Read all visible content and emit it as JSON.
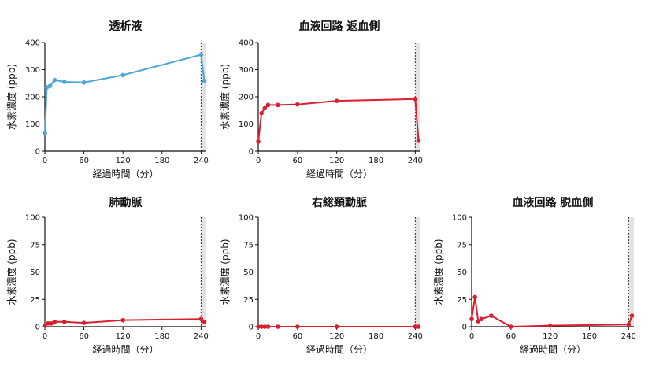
{
  "colors": {
    "blue": "#4aa7d8",
    "red": "#d9202e",
    "shade": "#e3e3e3",
    "axis": "#111111"
  },
  "chart_data": [
    {
      "type": "line",
      "title": "透析液",
      "xlabel": "経過時間（分）",
      "ylabel": "水素濃度 (ppb)",
      "xlim": [
        0,
        248
      ],
      "ylim": [
        0,
        400
      ],
      "xticks": [
        "0",
        "60",
        "120",
        "180",
        "240"
      ],
      "yticks": [
        "0",
        "100",
        "200",
        "300",
        "400"
      ],
      "color": "blue",
      "x": [
        0,
        3,
        8,
        15,
        30,
        60,
        120,
        240,
        245
      ],
      "y": [
        65,
        235,
        240,
        262,
        255,
        253,
        280,
        355,
        258
      ],
      "dashed_line_x": 240,
      "shade_from_x": 240
    },
    {
      "type": "line",
      "title": "血液回路 返血側",
      "xlabel": "経過時間（分）",
      "ylabel": "水素濃度 (ppb)",
      "xlim": [
        0,
        248
      ],
      "ylim": [
        0,
        400
      ],
      "xticks": [
        "0",
        "60",
        "120",
        "180",
        "240"
      ],
      "yticks": [
        "0",
        "100",
        "200",
        "300",
        "400"
      ],
      "color": "red",
      "x": [
        0,
        5,
        10,
        15,
        30,
        60,
        120,
        240,
        245
      ],
      "y": [
        35,
        140,
        158,
        170,
        170,
        172,
        185,
        192,
        38
      ],
      "dashed_line_x": 240,
      "shade_from_x": 240
    },
    {
      "type": "line",
      "title": "肺動脈",
      "xlabel": "経過時間（分）",
      "ylabel": "水素濃度 (ppb)",
      "xlim": [
        0,
        248
      ],
      "ylim": [
        0,
        100
      ],
      "xticks": [
        "0",
        "60",
        "120",
        "180",
        "240"
      ],
      "yticks": [
        "0",
        "25",
        "50",
        "75",
        "100"
      ],
      "color": "red",
      "x": [
        0,
        5,
        10,
        15,
        30,
        60,
        120,
        240,
        245
      ],
      "y": [
        1,
        3,
        3,
        4.5,
        4.5,
        3.5,
        6,
        7,
        4.5
      ],
      "dashed_line_x": 240,
      "shade_from_x": 240
    },
    {
      "type": "line",
      "title": "右総頚動脈",
      "xlabel": "経過時間（分）",
      "ylabel": "水素濃度 (ppb)",
      "xlim": [
        0,
        248
      ],
      "ylim": [
        0,
        100
      ],
      "xticks": [
        "0",
        "60",
        "120",
        "180",
        "240"
      ],
      "yticks": [
        "0",
        "25",
        "50",
        "75",
        "100"
      ],
      "color": "red",
      "x": [
        0,
        5,
        10,
        15,
        30,
        60,
        120,
        240,
        245
      ],
      "y": [
        0,
        0,
        0,
        0,
        0,
        0,
        0,
        0,
        0
      ],
      "dashed_line_x": 240,
      "shade_from_x": 240
    },
    {
      "type": "line",
      "title": "血液回路 脱血側",
      "xlabel": "経過時間（分）",
      "ylabel": "水素濃度 (ppb)",
      "xlim": [
        0,
        248
      ],
      "ylim": [
        0,
        100
      ],
      "xticks": [
        "0",
        "60",
        "120",
        "180",
        "240"
      ],
      "yticks": [
        "0",
        "25",
        "50",
        "75",
        "100"
      ],
      "color": "red",
      "x": [
        0,
        5,
        10,
        15,
        30,
        60,
        120,
        240,
        245
      ],
      "y": [
        7,
        27,
        5,
        7,
        10,
        0,
        1,
        2,
        10
      ],
      "dashed_line_x": 240,
      "shade_from_x": 240
    }
  ]
}
